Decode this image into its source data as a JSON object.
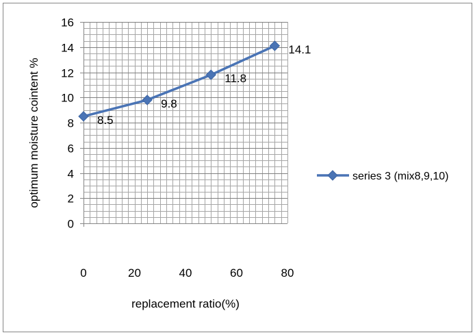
{
  "chart_data": {
    "type": "line",
    "title": "",
    "xlabel": "replacement ratio(%)",
    "ylabel": "optimum moisture cointent %",
    "xlim": [
      0,
      80
    ],
    "ylim": [
      0,
      16
    ],
    "x_ticks": [
      0,
      20,
      40,
      60,
      80
    ],
    "y_ticks": [
      0,
      2,
      4,
      6,
      8,
      10,
      12,
      14,
      16
    ],
    "grid": true,
    "legend_position": "right",
    "series": [
      {
        "name": "series 3 (mix8,9,10)",
        "color": "#4a74b5",
        "marker": "diamond",
        "x": [
          0,
          25,
          50,
          75
        ],
        "y": [
          8.5,
          9.8,
          11.8,
          14.1
        ],
        "data_labels": [
          "8.5",
          "9.8",
          "11.8",
          "14.1"
        ]
      }
    ]
  }
}
